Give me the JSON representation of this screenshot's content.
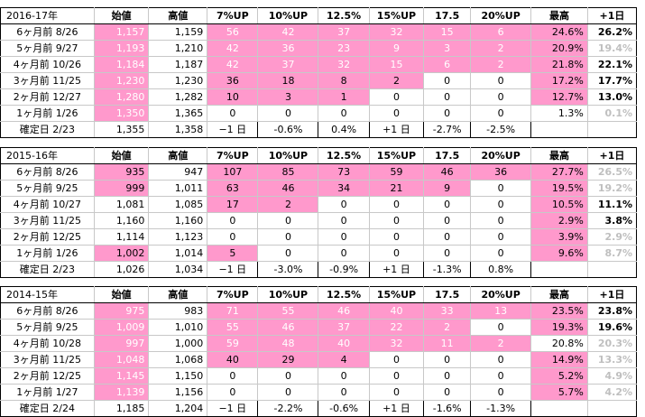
{
  "columns": [
    "始値",
    "高値",
    "7%UP",
    "10%UP",
    "12.5%",
    "15%UP",
    "17.5",
    "20%UP",
    "最高",
    "+1日"
  ],
  "tables": [
    {
      "title": "2016-17年",
      "rows": [
        {
          "label": "6ヶ月前  8/26",
          "open": "1,157",
          "high": "1,159",
          "u7": "56",
          "u10": "42",
          "u125": "37",
          "u15": "32",
          "u175": "15",
          "u20": "6",
          "max": "24.6%",
          "next": "26.2%",
          "next_style": "bold",
          "pink_open": true,
          "pink_to": "u20",
          "max_pink": true
        },
        {
          "label": "5ヶ月前  9/27",
          "open": "1,193",
          "high": "1,210",
          "u7": "42",
          "u10": "36",
          "u125": "23",
          "u15": "9",
          "u175": "3",
          "u20": "2",
          "max": "20.9%",
          "next": "19.4%",
          "next_style": "grey",
          "pink_open": true,
          "pink_to": "u20",
          "max_pink": true
        },
        {
          "label": "4ヶ月前  10/26",
          "open": "1,184",
          "high": "1,187",
          "u7": "42",
          "u10": "37",
          "u125": "32",
          "u15": "15",
          "u175": "6",
          "u20": "2",
          "max": "21.8%",
          "next": "22.1%",
          "next_style": "bold",
          "pink_open": true,
          "pink_to": "u20",
          "max_pink": true
        },
        {
          "label": "3ヶ月前  11/25",
          "open": "1,230",
          "high": "1,230",
          "u7": "36",
          "u10": "18",
          "u125": "8",
          "u15": "2",
          "u175": "0",
          "u20": "0",
          "max": "17.2%",
          "next": "17.7%",
          "next_style": "bold",
          "pink_open": true,
          "pink_to": "u15",
          "max_pink": true
        },
        {
          "label": "2ヶ月前  12/27",
          "open": "1,280",
          "high": "1,282",
          "u7": "10",
          "u10": "3",
          "u125": "1",
          "u15": "0",
          "u175": "0",
          "u20": "0",
          "max": "12.7%",
          "next": "13.0%",
          "next_style": "bold",
          "pink_open": true,
          "pink_to": "u125",
          "max_pink": true
        },
        {
          "label": "1ヶ月前  1/26",
          "open": "1,350",
          "high": "1,365",
          "u7": "0",
          "u10": "0",
          "u125": "0",
          "u15": "0",
          "u175": "0",
          "u20": "0",
          "max": "1.3%",
          "next": "0.1%",
          "next_style": "grey",
          "pink_open": true,
          "pink_to": "",
          "max_pink": false
        }
      ],
      "final": {
        "label": "確定日  2/23",
        "open": "1,355",
        "high": "1,358",
        "u7": "−1 日",
        "u10": "-0.6%",
        "u125": "0.4%",
        "u15": "+1 日",
        "u175": "-2.7%",
        "u20": "-2.5%"
      }
    },
    {
      "title": "2015-16年",
      "rows": [
        {
          "label": "6ヶ月前  8/26",
          "open": "935",
          "high": "947",
          "u7": "107",
          "u10": "85",
          "u125": "73",
          "u15": "59",
          "u175": "46",
          "u20": "36",
          "max": "27.7%",
          "next": "26.5%",
          "next_style": "grey",
          "pink_open": true,
          "pink_open_dark": true,
          "pink_to": "u20",
          "max_pink": true
        },
        {
          "label": "5ヶ月前  9/25",
          "open": "999",
          "high": "1,011",
          "u7": "63",
          "u10": "46",
          "u125": "34",
          "u15": "21",
          "u175": "9",
          "u20": "0",
          "max": "19.5%",
          "next": "19.2%",
          "next_style": "grey",
          "pink_open": true,
          "pink_open_dark": true,
          "pink_to": "u175",
          "max_pink": true
        },
        {
          "label": "4ヶ月前  10/27",
          "open": "1,081",
          "high": "1,085",
          "u7": "17",
          "u10": "2",
          "u125": "0",
          "u15": "0",
          "u175": "0",
          "u20": "0",
          "max": "10.5%",
          "next": "11.1%",
          "next_style": "bold",
          "pink_open": false,
          "pink_to": "u10",
          "max_pink": true
        },
        {
          "label": "3ヶ月前  11/25",
          "open": "1,160",
          "high": "1,160",
          "u7": "0",
          "u10": "0",
          "u125": "0",
          "u15": "0",
          "u175": "0",
          "u20": "0",
          "max": "2.9%",
          "next": "3.8%",
          "next_style": "bold",
          "pink_open": false,
          "pink_to": "",
          "max_pink": true
        },
        {
          "label": "2ヶ月前  12/25",
          "open": "1,114",
          "high": "1,123",
          "u7": "0",
          "u10": "0",
          "u125": "0",
          "u15": "0",
          "u175": "0",
          "u20": "0",
          "max": "3.9%",
          "next": "2.9%",
          "next_style": "grey",
          "pink_open": false,
          "pink_to": "",
          "max_pink": true
        },
        {
          "label": "1ヶ月前  1/26",
          "open": "1,002",
          "high": "1,014",
          "u7": "5",
          "u10": "0",
          "u125": "0",
          "u15": "0",
          "u175": "0",
          "u20": "0",
          "max": "9.6%",
          "next": "8.7%",
          "next_style": "grey",
          "pink_open": true,
          "pink_open_dark": true,
          "pink_to": "u7",
          "max_pink": true
        }
      ],
      "final": {
        "label": "確定日  2/23",
        "open": "1,026",
        "high": "1,034",
        "u7": "−1 日",
        "u10": "-3.0%",
        "u125": "-0.9%",
        "u15": "+1 日",
        "u175": "-1.3%",
        "u20": "0.8%"
      }
    },
    {
      "title": "2014-15年",
      "rows": [
        {
          "label": "6ヶ月前  8/26",
          "open": "975",
          "high": "983",
          "u7": "71",
          "u10": "55",
          "u125": "46",
          "u15": "40",
          "u175": "33",
          "u20": "13",
          "max": "23.5%",
          "next": "23.8%",
          "next_style": "bold",
          "pink_open": true,
          "pink_to": "u20",
          "max_pink": true
        },
        {
          "label": "5ヶ月前  9/25",
          "open": "1,009",
          "high": "1,010",
          "u7": "55",
          "u10": "46",
          "u125": "37",
          "u15": "22",
          "u175": "2",
          "u20": "0",
          "max": "19.3%",
          "next": "19.6%",
          "next_style": "bold",
          "pink_open": true,
          "pink_to": "u175",
          "max_pink": true
        },
        {
          "label": "4ヶ月前  10/28",
          "open": "997",
          "high": "1,000",
          "u7": "59",
          "u10": "48",
          "u125": "40",
          "u15": "32",
          "u175": "11",
          "u20": "2",
          "max": "20.8%",
          "next": "20.3%",
          "next_style": "grey",
          "pink_open": true,
          "pink_to": "u20",
          "max_pink": false
        },
        {
          "label": "3ヶ月前  11/25",
          "open": "1,048",
          "high": "1,068",
          "u7": "40",
          "u10": "29",
          "u125": "4",
          "u15": "0",
          "u175": "0",
          "u20": "0",
          "max": "14.9%",
          "next": "13.3%",
          "next_style": "grey",
          "pink_open": true,
          "pink_to": "u125",
          "max_pink": true
        },
        {
          "label": "2ヶ月前  12/25",
          "open": "1,145",
          "high": "1,150",
          "u7": "0",
          "u10": "0",
          "u125": "0",
          "u15": "0",
          "u175": "0",
          "u20": "0",
          "max": "5.2%",
          "next": "4.9%",
          "next_style": "grey",
          "pink_open": true,
          "pink_to": "",
          "max_pink": true
        },
        {
          "label": "1ヶ月前  1/27",
          "open": "1,139",
          "high": "1,156",
          "u7": "0",
          "u10": "0",
          "u125": "0",
          "u15": "0",
          "u175": "0",
          "u20": "0",
          "max": "5.7%",
          "next": "4.2%",
          "next_style": "grey",
          "pink_open": true,
          "pink_to": "",
          "max_pink": true
        }
      ],
      "final": {
        "label": "確定日  2/24",
        "open": "1,185",
        "high": "1,204",
        "u7": "−1 日",
        "u10": "-2.2%",
        "u125": "-0.6%",
        "u15": "+1 日",
        "u175": "-1.6%",
        "u20": "-1.3%"
      }
    }
  ],
  "colors": {
    "pink": "#ff99cc",
    "grey_text": "#bfbfbf",
    "grid": "#c8c8c8"
  }
}
